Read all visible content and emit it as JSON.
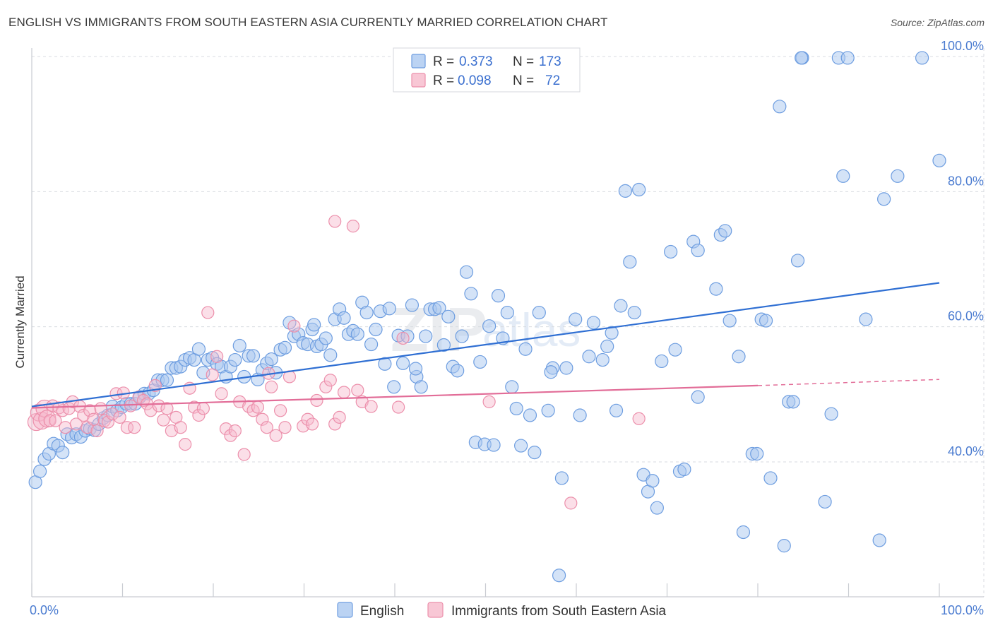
{
  "title": "ENGLISH VS IMMIGRANTS FROM SOUTH EASTERN ASIA CURRENTLY MARRIED CORRELATION CHART",
  "source": "Source: ZipAtlas.com",
  "watermark": {
    "zip": "ZIP",
    "atlas": "atlas"
  },
  "colors": {
    "english_fill": "#aac8f0",
    "english_stroke": "#6d9de0",
    "english_line": "#2f6fd3",
    "immig_fill": "#f6b9cb",
    "immig_stroke": "#ec8fab",
    "immig_line": "#e26d98",
    "grid": "#d8dbe0",
    "axis": "#c9ccd2",
    "tick_text": "#4a7bd0"
  },
  "chart_data": {
    "type": "scatter",
    "title": "ENGLISH VS IMMIGRANTS FROM SOUTH EASTERN ASIA CURRENTLY MARRIED CORRELATION CHART",
    "xlabel": "",
    "ylabel": "Currently Married",
    "xlim": [
      0,
      100
    ],
    "ylim": [
      20,
      102
    ],
    "x_tick_labels": [
      "0.0%",
      "100.0%"
    ],
    "y_ticks": [
      40,
      60,
      80,
      100
    ],
    "y_tick_labels": [
      "40.0%",
      "60.0%",
      "80.0%",
      "100.0%"
    ],
    "legend": [
      {
        "label_r": "R =",
        "r": "0.373",
        "label_n": "N =",
        "n": "173"
      },
      {
        "label_r": "R =",
        "r": "0.098",
        "label_n": "N =",
        "n": "72"
      }
    ],
    "series": [
      {
        "name": "English",
        "trend": {
          "x0": 0,
          "y0": 48.2,
          "x1": 100,
          "y1": 66.5,
          "dashed_from": 100
        },
        "points": [
          [
            0.4,
            37
          ],
          [
            0.9,
            38.6
          ],
          [
            1.4,
            40.4
          ],
          [
            1.9,
            41.2
          ],
          [
            2.4,
            42.7
          ],
          [
            2.9,
            42.4
          ],
          [
            3.4,
            41.4
          ],
          [
            3.9,
            44.1
          ],
          [
            4.4,
            43.6
          ],
          [
            4.9,
            44.1
          ],
          [
            5.4,
            43.7
          ],
          [
            5.9,
            44.6
          ],
          [
            6.4,
            44.9
          ],
          [
            6.9,
            44.7
          ],
          [
            7.4,
            45.6
          ],
          [
            7.9,
            46.5
          ],
          [
            8.4,
            46.9
          ],
          [
            8.9,
            48.2
          ],
          [
            9.4,
            47.6
          ],
          [
            9.9,
            48.1
          ],
          [
            10.4,
            48.6
          ],
          [
            10.9,
            48.6
          ],
          [
            11.4,
            48.6
          ],
          [
            11.9,
            49.6
          ],
          [
            12.4,
            50.1
          ],
          [
            12.9,
            50.1
          ],
          [
            13.4,
            50.6
          ],
          [
            13.9,
            52.1
          ],
          [
            14.4,
            52.1
          ],
          [
            14.9,
            52.1
          ],
          [
            15.4,
            53.9
          ],
          [
            15.9,
            53.9
          ],
          [
            16.4,
            54.1
          ],
          [
            16.9,
            55.1
          ],
          [
            17.4,
            55.4
          ],
          [
            17.9,
            55.1
          ],
          [
            18.4,
            56.7
          ],
          [
            18.9,
            53.2
          ],
          [
            19.4,
            55.1
          ],
          [
            19.9,
            55.4
          ],
          [
            20.4,
            54.5
          ],
          [
            20.9,
            54.1
          ],
          [
            21.4,
            52.6
          ],
          [
            21.9,
            54.1
          ],
          [
            22.4,
            55.1
          ],
          [
            22.9,
            57.2
          ],
          [
            23.4,
            52.6
          ],
          [
            23.9,
            55.7
          ],
          [
            24.4,
            55.7
          ],
          [
            24.9,
            52.2
          ],
          [
            25.4,
            53.6
          ],
          [
            25.9,
            54.6
          ],
          [
            26.4,
            55.2
          ],
          [
            26.9,
            53.2
          ],
          [
            27.4,
            56.6
          ],
          [
            27.9,
            56.9
          ],
          [
            28.4,
            60.6
          ],
          [
            28.9,
            58.6
          ],
          [
            29.4,
            58.9
          ],
          [
            29.9,
            57.6
          ],
          [
            30.4,
            57.4
          ],
          [
            30.9,
            59.6
          ],
          [
            31.4,
            57.1
          ],
          [
            31.9,
            57.4
          ],
          [
            32.4,
            58.3
          ],
          [
            32.9,
            55.8
          ],
          [
            33.4,
            61.1
          ],
          [
            33.9,
            62.6
          ],
          [
            34.4,
            61.3
          ],
          [
            34.9,
            58.9
          ],
          [
            35.4,
            59.4
          ],
          [
            35.9,
            58.9
          ],
          [
            36.4,
            63.6
          ],
          [
            36.9,
            62.1
          ],
          [
            37.4,
            57.4
          ],
          [
            37.9,
            59.6
          ],
          [
            38.4,
            62.3
          ],
          [
            38.9,
            54.5
          ],
          [
            39.4,
            62.7
          ],
          [
            39.9,
            51.1
          ],
          [
            40.4,
            58.7
          ],
          [
            40.9,
            54.6
          ],
          [
            41.4,
            58.6
          ],
          [
            41.9,
            63.2
          ],
          [
            42.4,
            52.6
          ],
          [
            42.9,
            51.1
          ],
          [
            43.4,
            58.6
          ],
          [
            43.9,
            62.6
          ],
          [
            44.4,
            62.6
          ],
          [
            44.9,
            62.8
          ],
          [
            45.4,
            57.3
          ],
          [
            45.9,
            61.5
          ],
          [
            46.4,
            54.1
          ],
          [
            46.9,
            53.5
          ],
          [
            47.4,
            58.6
          ],
          [
            47.9,
            68.1
          ],
          [
            48.4,
            64.9
          ],
          [
            48.9,
            42.9
          ],
          [
            49.4,
            54.8
          ],
          [
            49.9,
            42.6
          ],
          [
            50.4,
            60.1
          ],
          [
            50.9,
            42.5
          ],
          [
            51.4,
            64.6
          ],
          [
            51.9,
            58.3
          ],
          [
            52.4,
            62.1
          ],
          [
            52.9,
            51.1
          ],
          [
            53.4,
            47.9
          ],
          [
            53.9,
            42.4
          ],
          [
            54.4,
            56.7
          ],
          [
            54.9,
            46.9
          ],
          [
            55.4,
            41.4
          ],
          [
            55.9,
            62.1
          ],
          [
            56.9,
            47.6
          ],
          [
            57.4,
            53.9
          ],
          [
            58.4,
            37.6
          ],
          [
            58.9,
            53.9
          ],
          [
            59.9,
            61.1
          ],
          [
            60.4,
            46.9
          ],
          [
            61.4,
            55.6
          ],
          [
            61.9,
            60.6
          ],
          [
            62.9,
            55.1
          ],
          [
            63.4,
            57.1
          ],
          [
            63.9,
            59.1
          ],
          [
            64.4,
            47.6
          ],
          [
            64.9,
            63.1
          ],
          [
            65.4,
            80.1
          ],
          [
            65.9,
            69.6
          ],
          [
            66.4,
            62.1
          ],
          [
            66.9,
            80.3
          ],
          [
            67.4,
            38.1
          ],
          [
            67.9,
            35.6
          ],
          [
            68.4,
            37.2
          ],
          [
            68.9,
            33.2
          ],
          [
            69.4,
            54.9
          ],
          [
            70.4,
            71.1
          ],
          [
            70.9,
            56.6
          ],
          [
            71.4,
            38.6
          ],
          [
            71.9,
            38.9
          ],
          [
            72.9,
            72.6
          ],
          [
            73.4,
            71.3
          ],
          [
            73.4,
            49.6
          ],
          [
            75.4,
            65.6
          ],
          [
            75.9,
            73.6
          ],
          [
            76.4,
            74.2
          ],
          [
            76.9,
            60.9
          ],
          [
            77.9,
            55.6
          ],
          [
            78.4,
            29.6
          ],
          [
            79.4,
            41.2
          ],
          [
            79.9,
            41.2
          ],
          [
            80.4,
            61.1
          ],
          [
            80.9,
            60.9
          ],
          [
            81.4,
            37.6
          ],
          [
            82.4,
            92.6
          ],
          [
            82.9,
            27.6
          ],
          [
            83.4,
            48.9
          ],
          [
            83.9,
            48.9
          ],
          [
            84.4,
            69.8
          ],
          [
            84.9,
            99.8
          ],
          [
            87.4,
            34.1
          ],
          [
            88.1,
            47.1
          ],
          [
            88.9,
            99.8
          ],
          [
            89.4,
            82.3
          ],
          [
            89.9,
            99.8
          ],
          [
            91.9,
            61.1
          ],
          [
            93.4,
            28.4
          ],
          [
            93.9,
            78.9
          ],
          [
            95.4,
            82.3
          ],
          [
            98.1,
            99.8
          ],
          [
            100,
            84.6
          ],
          [
            84.8,
            99.8
          ],
          [
            58.1,
            23.2
          ],
          [
            31.1,
            60.3
          ],
          [
            57.2,
            53.3
          ],
          [
            42.3,
            53.8
          ]
        ]
      },
      {
        "name": "Immigrants from South Eastern Asia",
        "trend": {
          "x0": 0,
          "y0": 48.0,
          "x1": 80,
          "y1": 51.3,
          "dashed_from": 80,
          "x2": 100,
          "y2": 52.2
        },
        "points": [
          [
            0.5,
            45.9
          ],
          [
            0.8,
            47.3
          ],
          [
            1.1,
            46.1
          ],
          [
            1.4,
            47.9
          ],
          [
            1.7,
            46.4
          ],
          [
            2.0,
            46.1
          ],
          [
            2.3,
            48.3
          ],
          [
            2.6,
            46.1
          ],
          [
            3.0,
            48.0
          ],
          [
            3.4,
            47.6
          ],
          [
            3.7,
            45.1
          ],
          [
            4.1,
            47.9
          ],
          [
            4.5,
            48.9
          ],
          [
            4.9,
            45.6
          ],
          [
            5.3,
            48.2
          ],
          [
            5.7,
            46.9
          ],
          [
            6.1,
            45.1
          ],
          [
            6.4,
            47.6
          ],
          [
            6.8,
            46.3
          ],
          [
            7.2,
            44.6
          ],
          [
            7.6,
            47.9
          ],
          [
            8.0,
            46.1
          ],
          [
            8.4,
            45.9
          ],
          [
            8.9,
            47.1
          ],
          [
            9.3,
            50.1
          ],
          [
            9.7,
            46.6
          ],
          [
            10.1,
            50.2
          ],
          [
            10.5,
            45.1
          ],
          [
            10.9,
            48.3
          ],
          [
            11.3,
            45.1
          ],
          [
            11.8,
            49.6
          ],
          [
            12.3,
            49.1
          ],
          [
            12.7,
            48.6
          ],
          [
            13.1,
            47.6
          ],
          [
            13.6,
            51.3
          ],
          [
            14.0,
            48.3
          ],
          [
            14.5,
            46.2
          ],
          [
            14.9,
            47.9
          ],
          [
            15.4,
            44.6
          ],
          [
            15.9,
            46.6
          ],
          [
            16.4,
            45.1
          ],
          [
            16.9,
            42.6
          ],
          [
            17.4,
            50.9
          ],
          [
            17.9,
            48.1
          ],
          [
            18.4,
            46.9
          ],
          [
            18.9,
            47.9
          ],
          [
            19.4,
            62.1
          ],
          [
            19.9,
            52.9
          ],
          [
            20.4,
            55.6
          ],
          [
            20.9,
            50.1
          ],
          [
            21.4,
            44.9
          ],
          [
            21.9,
            43.9
          ],
          [
            22.4,
            44.6
          ],
          [
            22.9,
            48.9
          ],
          [
            23.4,
            41.1
          ],
          [
            23.9,
            48.2
          ],
          [
            24.4,
            47.6
          ],
          [
            24.9,
            48.1
          ],
          [
            25.4,
            46.3
          ],
          [
            25.9,
            45.1
          ],
          [
            26.4,
            51.1
          ],
          [
            26.9,
            43.9
          ],
          [
            27.4,
            47.6
          ],
          [
            27.9,
            45.1
          ],
          [
            28.4,
            52.6
          ],
          [
            28.9,
            60.1
          ],
          [
            29.9,
            45.3
          ],
          [
            30.4,
            46.3
          ],
          [
            30.9,
            45.6
          ],
          [
            31.4,
            49.1
          ],
          [
            32.4,
            51.1
          ],
          [
            32.9,
            52.1
          ],
          [
            33.4,
            45.6
          ],
          [
            33.9,
            46.6
          ],
          [
            34.4,
            50.3
          ],
          [
            35.9,
            50.6
          ],
          [
            36.4,
            48.9
          ],
          [
            37.4,
            48.2
          ],
          [
            40.4,
            48.1
          ],
          [
            33.4,
            75.6
          ],
          [
            35.4,
            74.9
          ],
          [
            50.4,
            48.9
          ],
          [
            59.4,
            33.9
          ],
          [
            66.9,
            46.4
          ],
          [
            40.9,
            58.3
          ],
          [
            26.1,
            53.1
          ]
        ]
      }
    ]
  },
  "bottom_legend": [
    {
      "label": "English"
    },
    {
      "label": "Immigrants from South Eastern Asia"
    }
  ]
}
